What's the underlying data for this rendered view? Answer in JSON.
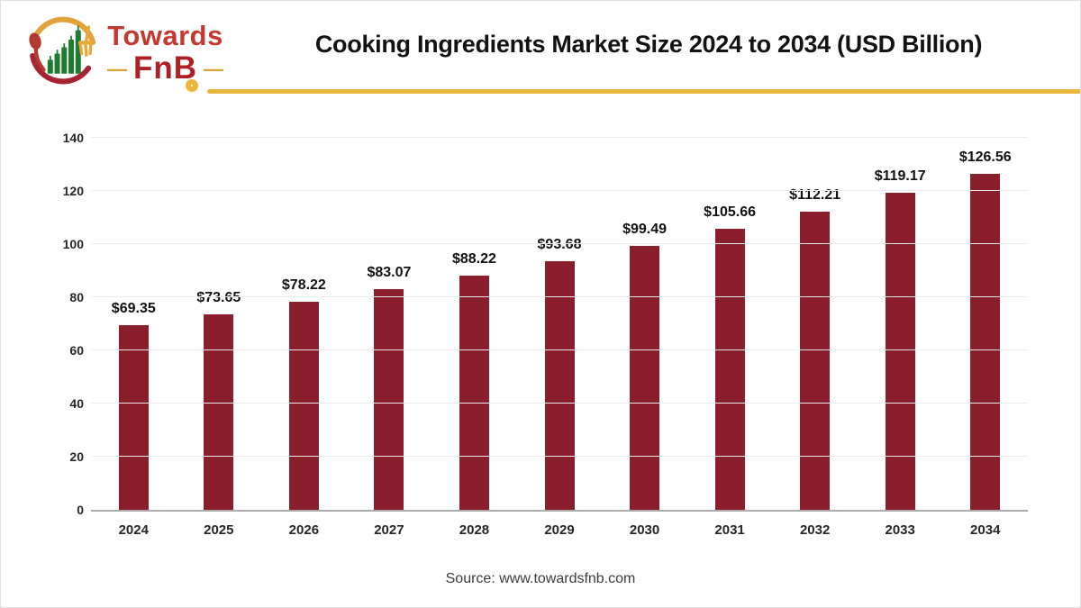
{
  "logo": {
    "name_top": "Towards",
    "name_bottom": "FnB",
    "dash": "—"
  },
  "chart_data": {
    "type": "bar",
    "title": "Cooking Ingredients Market Size 2024 to 2034 (USD Billion)",
    "categories": [
      "2024",
      "2025",
      "2026",
      "2027",
      "2028",
      "2029",
      "2030",
      "2031",
      "2032",
      "2033",
      "2034"
    ],
    "values": [
      69.35,
      73.65,
      78.22,
      83.07,
      88.22,
      93.68,
      99.49,
      105.66,
      112.21,
      119.17,
      126.56
    ],
    "data_labels": [
      "$69.35",
      "$73.65",
      "$78.22",
      "$83.07",
      "$88.22",
      "$93.68",
      "$99.49",
      "$105.66",
      "$112.21",
      "$119.17",
      "$126.56"
    ],
    "xlabel": "",
    "ylabel": "",
    "ylim": [
      0,
      140
    ],
    "yticks": [
      0,
      20,
      40,
      60,
      80,
      100,
      120,
      140
    ],
    "grid": true,
    "legend": false,
    "bar_color": "#8b1e2c"
  },
  "footer": {
    "source": "Source: www.towardsfnb.com"
  },
  "colors": {
    "accent_gold": "#e9b63e",
    "bar": "#8b1e2c",
    "gridline": "#ececec",
    "axis_line": "#ababab",
    "logo_red": "#c3392f",
    "logo_dark_red": "#ad2025",
    "logo_green": "#1f7b2f"
  }
}
